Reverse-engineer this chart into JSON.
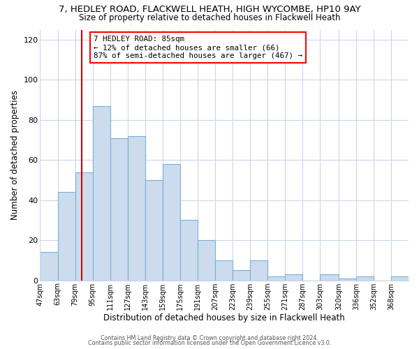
{
  "title_line1": "7, HEDLEY ROAD, FLACKWELL HEATH, HIGH WYCOMBE, HP10 9AY",
  "title_line2": "Size of property relative to detached houses in Flackwell Heath",
  "xlabel": "Distribution of detached houses by size in Flackwell Heath",
  "ylabel": "Number of detached properties",
  "bin_labels": [
    "47sqm",
    "63sqm",
    "79sqm",
    "95sqm",
    "111sqm",
    "127sqm",
    "143sqm",
    "159sqm",
    "175sqm",
    "191sqm",
    "207sqm",
    "223sqm",
    "239sqm",
    "255sqm",
    "271sqm",
    "287sqm",
    "303sqm",
    "320sqm",
    "336sqm",
    "352sqm",
    "368sqm"
  ],
  "bin_edges": [
    47,
    63,
    79,
    95,
    111,
    127,
    143,
    159,
    175,
    191,
    207,
    223,
    239,
    255,
    271,
    287,
    303,
    320,
    336,
    352,
    368,
    384
  ],
  "values": [
    14,
    44,
    54,
    87,
    71,
    72,
    50,
    58,
    30,
    20,
    10,
    5,
    10,
    2,
    3,
    0,
    3,
    1,
    2,
    0,
    2
  ],
  "bar_color": "#ccdcee",
  "bar_edge_color": "#7bafd4",
  "property_line_x": 85,
  "property_line_color": "#cc0000",
  "annotation_line1": "7 HEDLEY ROAD: 85sqm",
  "annotation_line2": "← 12% of detached houses are smaller (66)",
  "annotation_line3": "87% of semi-detached houses are larger (467) →",
  "ylim": [
    0,
    125
  ],
  "yticks": [
    0,
    20,
    40,
    60,
    80,
    100,
    120
  ],
  "background_color": "#ffffff",
  "grid_color": "#ccd6e8",
  "footer_line1": "Contains HM Land Registry data © Crown copyright and database right 2024.",
  "footer_line2": "Contains public sector information licensed under the Open Government Licence v3.0."
}
